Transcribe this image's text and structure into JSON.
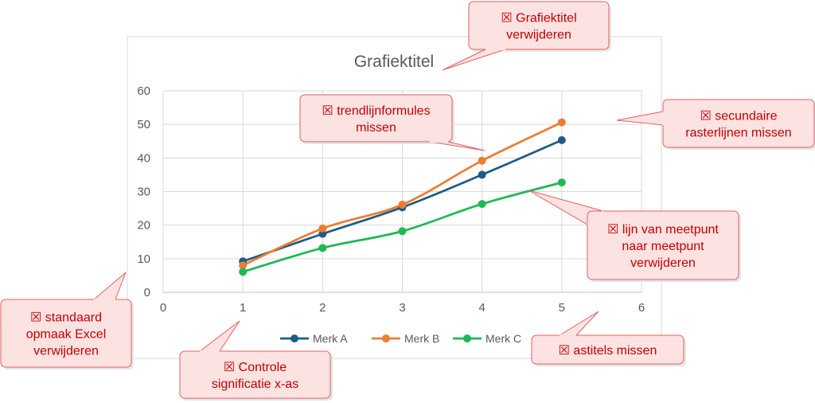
{
  "chart_data": {
    "type": "scatter",
    "title": "Grafiektitel",
    "xlabel": "",
    "ylabel": "",
    "xlim": [
      0,
      6
    ],
    "ylim": [
      0,
      60
    ],
    "xticks": [
      "0",
      "1",
      "2",
      "3",
      "4",
      "5",
      "6"
    ],
    "yticks": [
      "0",
      "10",
      "20",
      "30",
      "40",
      "50",
      "60"
    ],
    "grid": "major",
    "legend_position": "bottom",
    "series": [
      {
        "name": "Merk A",
        "color": "#1f5c85",
        "x": [
          1,
          2,
          3,
          4,
          5
        ],
        "y": [
          9.2,
          17.4,
          25.3,
          35.0,
          45.3
        ]
      },
      {
        "name": "Merk B",
        "color": "#ed7d31",
        "x": [
          1,
          2,
          3,
          4,
          5
        ],
        "y": [
          8.0,
          19.0,
          26.1,
          39.2,
          50.6
        ]
      },
      {
        "name": "Merk C",
        "color": "#1db954",
        "x": [
          1,
          2,
          3,
          4,
          5
        ],
        "y": [
          6.1,
          13.2,
          18.2,
          26.3,
          32.7
        ]
      }
    ]
  },
  "callouts": [
    {
      "id": "grafiektitel",
      "lines": [
        "☒ Grafiektitel",
        "verwijderen"
      ]
    },
    {
      "id": "trendlijn",
      "lines": [
        "☒ trendlijnformules",
        "missen"
      ]
    },
    {
      "id": "raster",
      "lines": [
        "☒ secundaire",
        "rasterlijnen missen"
      ]
    },
    {
      "id": "lijn",
      "lines": [
        "☒ lijn van meetpunt",
        "naar meetpunt",
        "verwijderen"
      ]
    },
    {
      "id": "standaard",
      "lines": [
        "☒ standaard",
        "opmaak Excel",
        "verwijderen"
      ]
    },
    {
      "id": "controle",
      "lines": [
        "☒ Controle",
        "significatie x-as"
      ]
    },
    {
      "id": "astitels",
      "lines": [
        "☒ astitels missen"
      ]
    }
  ]
}
